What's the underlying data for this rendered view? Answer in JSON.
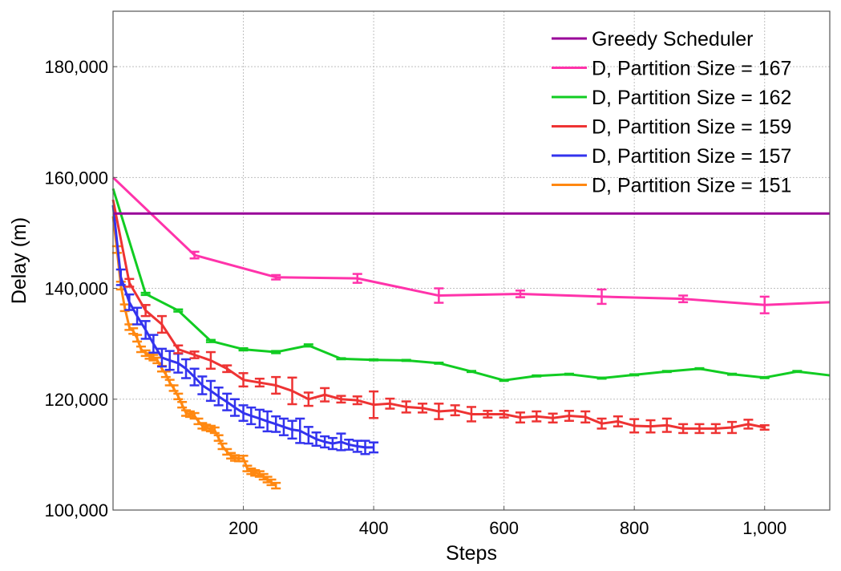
{
  "chart_data": {
    "type": "line",
    "title": "",
    "xlabel": "Steps",
    "ylabel": "Delay (m)",
    "xlim": [
      0,
      1100
    ],
    "ylim": [
      100000,
      190000
    ],
    "x_ticks": [
      200,
      400,
      600,
      800,
      1000
    ],
    "x_tick_labels": [
      "200",
      "400",
      "600",
      "800",
      "1,000"
    ],
    "y_ticks": [
      100000,
      120000,
      140000,
      160000,
      180000
    ],
    "y_tick_labels": [
      "100,000",
      "120,000",
      "140,000",
      "160,000",
      "180,000"
    ],
    "grid": true,
    "legend_position": "top-right",
    "series": [
      {
        "name": "Greedy Scheduler",
        "color": "#990099",
        "errorbars": false,
        "points": [
          [
            0,
            153500
          ],
          [
            1100,
            153500
          ]
        ]
      },
      {
        "name": "D, Partition Size = 167",
        "color": "#ff33aa",
        "errorbars": true,
        "points": [
          [
            0,
            160000,
            0
          ],
          [
            125,
            146000,
            600
          ],
          [
            250,
            142000,
            400
          ],
          [
            375,
            141800,
            800
          ],
          [
            500,
            138700,
            1300
          ],
          [
            625,
            139000,
            600
          ],
          [
            750,
            138500,
            1300
          ],
          [
            875,
            138100,
            600
          ],
          [
            1000,
            137000,
            1500
          ],
          [
            1100,
            137500,
            0
          ]
        ]
      },
      {
        "name": "D, Partition Size = 162",
        "color": "#11cc22",
        "errorbars": true,
        "points": [
          [
            0,
            158000,
            0
          ],
          [
            50,
            139000,
            200
          ],
          [
            100,
            136000,
            200
          ],
          [
            150,
            130500,
            200
          ],
          [
            200,
            129000,
            200
          ],
          [
            250,
            128500,
            200
          ],
          [
            300,
            129700,
            200
          ],
          [
            350,
            127300,
            100
          ],
          [
            400,
            127100,
            100
          ],
          [
            450,
            127000,
            100
          ],
          [
            500,
            126500,
            100
          ],
          [
            550,
            125000,
            100
          ],
          [
            600,
            123400,
            100
          ],
          [
            650,
            124200,
            100
          ],
          [
            700,
            124500,
            100
          ],
          [
            750,
            123800,
            100
          ],
          [
            800,
            124400,
            100
          ],
          [
            850,
            125000,
            100
          ],
          [
            900,
            125500,
            100
          ],
          [
            950,
            124500,
            100
          ],
          [
            1000,
            123900,
            100
          ],
          [
            1050,
            125000,
            100
          ],
          [
            1100,
            124300,
            0
          ]
        ]
      },
      {
        "name": "D, Partition Size = 159",
        "color": "#ee3333",
        "errorbars": true,
        "points": [
          [
            0,
            156000,
            0
          ],
          [
            25,
            141000,
            700
          ],
          [
            50,
            136000,
            1000
          ],
          [
            75,
            133500,
            1500
          ],
          [
            100,
            129000,
            700
          ],
          [
            125,
            128000,
            600
          ],
          [
            150,
            127000,
            1500
          ],
          [
            175,
            125500,
            600
          ],
          [
            200,
            123500,
            1200
          ],
          [
            225,
            123000,
            700
          ],
          [
            250,
            122500,
            1500
          ],
          [
            275,
            121500,
            2400
          ],
          [
            300,
            120000,
            1200
          ],
          [
            325,
            120800,
            1200
          ],
          [
            350,
            120000,
            600
          ],
          [
            375,
            119800,
            700
          ],
          [
            400,
            119000,
            2400
          ],
          [
            425,
            119200,
            900
          ],
          [
            450,
            118600,
            1000
          ],
          [
            475,
            118400,
            800
          ],
          [
            500,
            117800,
            1400
          ],
          [
            525,
            118000,
            900
          ],
          [
            550,
            117300,
            1300
          ],
          [
            575,
            117300,
            600
          ],
          [
            600,
            117300,
            600
          ],
          [
            625,
            116700,
            900
          ],
          [
            650,
            116900,
            900
          ],
          [
            675,
            116600,
            800
          ],
          [
            700,
            117000,
            900
          ],
          [
            725,
            116800,
            1000
          ],
          [
            750,
            115600,
            900
          ],
          [
            775,
            116000,
            900
          ],
          [
            800,
            115200,
            1200
          ],
          [
            825,
            115100,
            1100
          ],
          [
            850,
            115300,
            1200
          ],
          [
            875,
            114700,
            800
          ],
          [
            900,
            114700,
            800
          ],
          [
            925,
            114700,
            800
          ],
          [
            950,
            114900,
            1000
          ],
          [
            975,
            115500,
            800
          ],
          [
            1000,
            114900,
            400
          ]
        ]
      },
      {
        "name": "D, Partition Size = 157",
        "color": "#3333ee",
        "errorbars": true,
        "points": [
          [
            0,
            155000,
            0
          ],
          [
            12,
            142000,
            1400
          ],
          [
            25,
            137500,
            1400
          ],
          [
            37,
            135000,
            1500
          ],
          [
            50,
            132500,
            1600
          ],
          [
            62,
            130000,
            1600
          ],
          [
            75,
            127500,
            1600
          ],
          [
            87,
            127000,
            1700
          ],
          [
            100,
            126500,
            1700
          ],
          [
            112,
            125500,
            1700
          ],
          [
            125,
            124000,
            1500
          ],
          [
            137,
            122500,
            1600
          ],
          [
            150,
            121500,
            1800
          ],
          [
            162,
            120500,
            1600
          ],
          [
            175,
            119500,
            1500
          ],
          [
            187,
            118500,
            1500
          ],
          [
            200,
            117500,
            1400
          ],
          [
            212,
            117000,
            1500
          ],
          [
            225,
            116500,
            1600
          ],
          [
            237,
            116000,
            1800
          ],
          [
            250,
            115500,
            1400
          ],
          [
            262,
            115000,
            1500
          ],
          [
            275,
            114500,
            1600
          ],
          [
            287,
            114300,
            2200
          ],
          [
            300,
            113500,
            1500
          ],
          [
            312,
            112800,
            1200
          ],
          [
            325,
            112300,
            1000
          ],
          [
            337,
            112000,
            1000
          ],
          [
            350,
            112300,
            1500
          ],
          [
            362,
            111800,
            900
          ],
          [
            375,
            111500,
            1000
          ],
          [
            387,
            111300,
            1200
          ],
          [
            400,
            111300,
            900
          ]
        ]
      },
      {
        "name": "D, Partition Size = 151",
        "color": "#ff8811",
        "errorbars": true,
        "points": [
          [
            0,
            153000,
            0
          ],
          [
            6,
            147000,
            600
          ],
          [
            12,
            140500,
            700
          ],
          [
            18,
            136500,
            600
          ],
          [
            25,
            133000,
            500
          ],
          [
            31,
            132300,
            500
          ],
          [
            37,
            131000,
            600
          ],
          [
            43,
            129000,
            500
          ],
          [
            50,
            128300,
            500
          ],
          [
            56,
            127800,
            500
          ],
          [
            62,
            127500,
            500
          ],
          [
            68,
            127000,
            500
          ],
          [
            75,
            125500,
            500
          ],
          [
            81,
            124500,
            500
          ],
          [
            87,
            123000,
            500
          ],
          [
            93,
            122000,
            500
          ],
          [
            100,
            120500,
            500
          ],
          [
            106,
            119000,
            500
          ],
          [
            112,
            117500,
            500
          ],
          [
            118,
            117300,
            500
          ],
          [
            125,
            117000,
            500
          ],
          [
            131,
            116000,
            500
          ],
          [
            137,
            115200,
            500
          ],
          [
            143,
            114900,
            500
          ],
          [
            150,
            114700,
            500
          ],
          [
            156,
            114400,
            500
          ],
          [
            162,
            113000,
            500
          ],
          [
            168,
            111500,
            500
          ],
          [
            175,
            110500,
            500
          ],
          [
            181,
            109800,
            500
          ],
          [
            187,
            109400,
            500
          ],
          [
            193,
            109300,
            500
          ],
          [
            200,
            109300,
            500
          ],
          [
            206,
            107500,
            500
          ],
          [
            212,
            107000,
            500
          ],
          [
            218,
            106700,
            500
          ],
          [
            225,
            106500,
            500
          ],
          [
            231,
            106000,
            500
          ],
          [
            237,
            105500,
            500
          ],
          [
            243,
            105000,
            500
          ],
          [
            250,
            104400,
            500
          ]
        ]
      }
    ]
  }
}
